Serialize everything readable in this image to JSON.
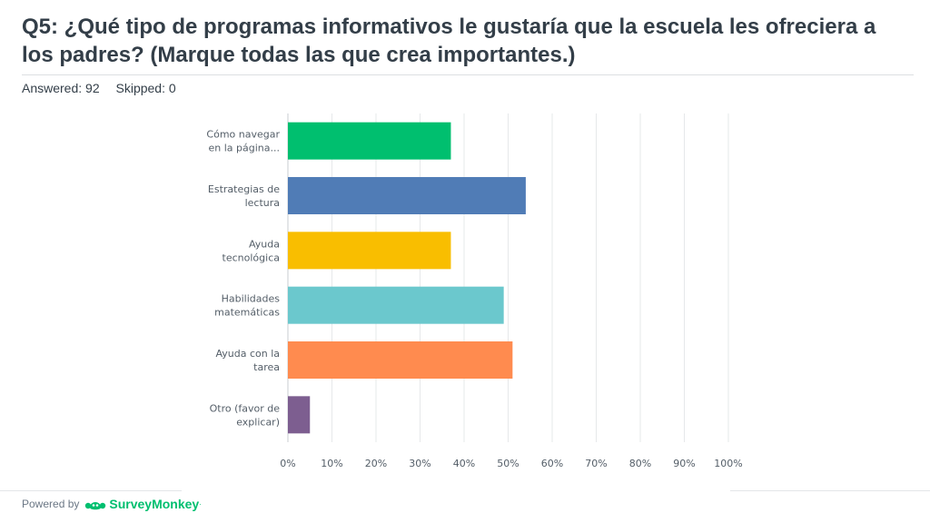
{
  "question": {
    "title": "Q5: ¿Qué tipo de programas informativos le gustaría que la escuela les ofreciera a los padres? (Marque todas las que crea importantes.)"
  },
  "stats": {
    "answered": "Answered: 92",
    "skipped": "Skipped: 0"
  },
  "footer": {
    "powered_by": "Powered by",
    "brand": "SurveyMonkey",
    "brand_mark": "·",
    "brand_color": "#00bf6f"
  },
  "chart_data": {
    "type": "bar",
    "orientation": "horizontal",
    "categories": [
      [
        "Cómo navegar",
        "en la página..."
      ],
      [
        "Estrategias de",
        "lectura"
      ],
      [
        "Ayuda",
        "tecnológica"
      ],
      [
        "Habilidades",
        "matemáticas"
      ],
      [
        "Ayuda con la",
        "tarea"
      ],
      [
        "Otro (favor de",
        "explicar)"
      ]
    ],
    "values": [
      37,
      54,
      37,
      49,
      51,
      5
    ],
    "colors": [
      "#00bf6f",
      "#507cb6",
      "#f9be00",
      "#6bc8cd",
      "#ff8b4f",
      "#7d5e90"
    ],
    "xlim": [
      0,
      100
    ],
    "xticks": [
      "0%",
      "10%",
      "20%",
      "30%",
      "40%",
      "50%",
      "60%",
      "70%",
      "80%",
      "90%",
      "100%"
    ],
    "unit": "%",
    "grid": true
  }
}
